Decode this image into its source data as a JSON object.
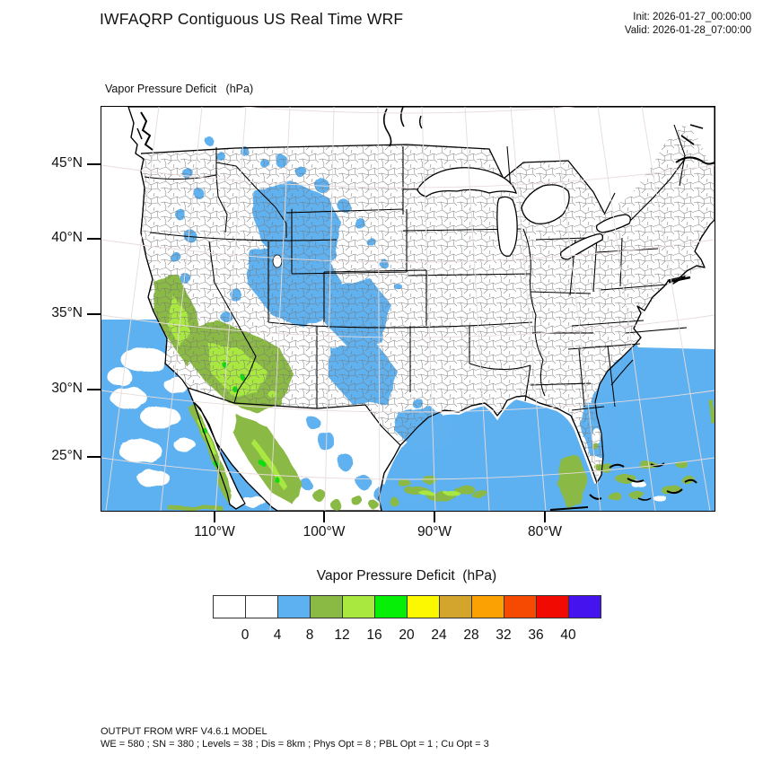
{
  "header": {
    "title": "IWFAQRP Contiguous US Real Time WRF",
    "init_label": "Init: 2026-01-27_00:00:00",
    "valid_label": "Valid: 2026-01-28_07:00:00"
  },
  "map": {
    "field_label": "Vapor Pressure Deficit   (hPa)"
  },
  "axes": {
    "lat_labels": [
      "45°N",
      "40°N",
      "35°N",
      "30°N",
      "25°N"
    ],
    "lon_labels": [
      "110°W",
      "100°W",
      "90°W",
      "80°W"
    ]
  },
  "colorbar": {
    "title": "Vapor Pressure Deficit  (hPa)",
    "tick_labels": [
      "0",
      "4",
      "8",
      "12",
      "16",
      "20",
      "24",
      "28",
      "32",
      "36",
      "40"
    ],
    "colors": [
      "#FFFFFF",
      "#FFFFFF",
      "#5EB1F0",
      "#8AB944",
      "#A9E83F",
      "#06EF06",
      "#FCF802",
      "#D3A52C",
      "#FCA103",
      "#F64A02",
      "#F00A02",
      "#4513EE"
    ],
    "ocean_fill": "#5EB1F0",
    "land_fill": "#FFFFFF"
  },
  "footer": {
    "line1": "OUTPUT FROM WRF V4.6.1 MODEL",
    "line2": "WE = 580 ; SN = 380 ; Levels = 38 ; Dis = 8km ; Phys Opt = 8 ; PBL Opt = 1 ; Cu Opt = 3"
  }
}
